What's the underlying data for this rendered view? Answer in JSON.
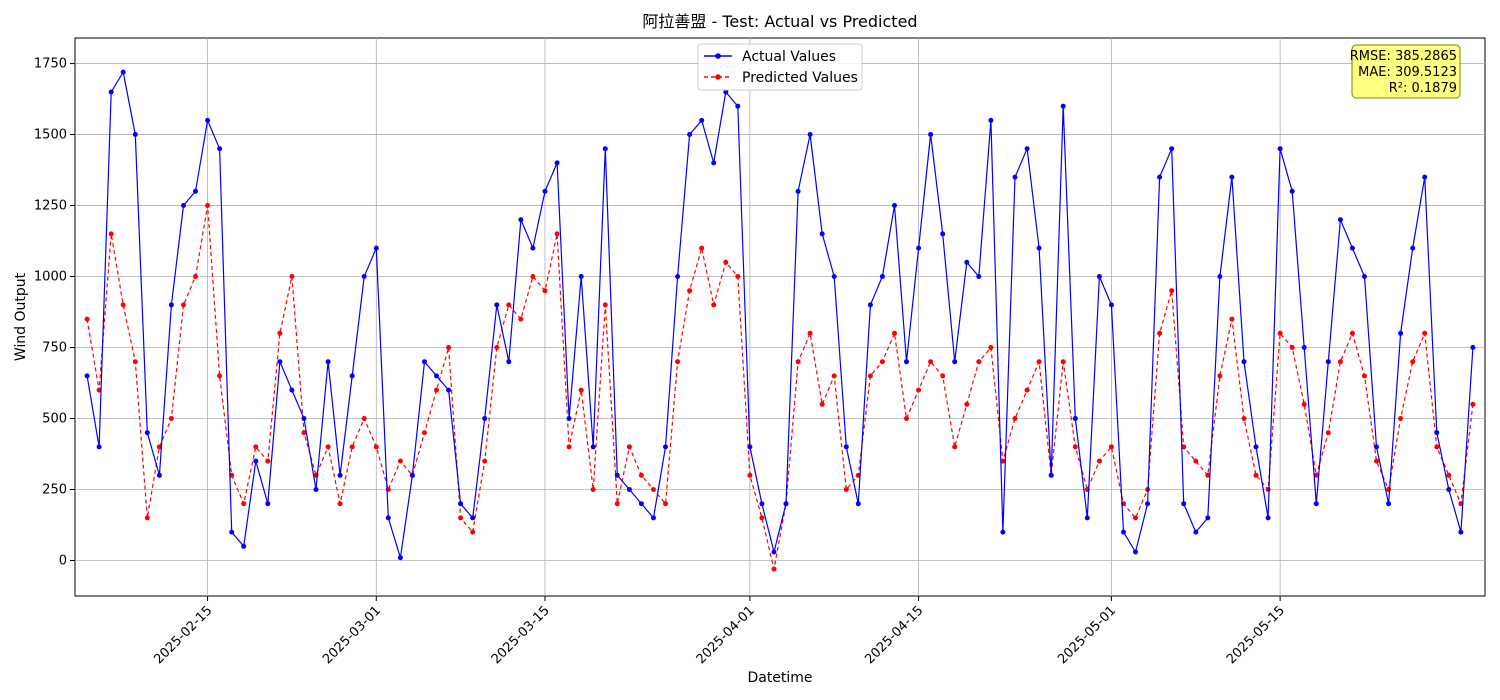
{
  "chart_data": {
    "type": "line",
    "title": "阿拉善盟 - Test: Actual vs Predicted",
    "xlabel": "Datetime",
    "ylabel": "Wind Output",
    "xlim": [
      "2025-02-04",
      "2025-06-01"
    ],
    "ylim": [
      -125,
      1840
    ],
    "yticks": [
      0,
      250,
      500,
      750,
      1000,
      1250,
      1500,
      1750
    ],
    "xticks": [
      "2025-02-15",
      "2025-03-01",
      "2025-03-15",
      "2025-04-01",
      "2025-04-15",
      "2025-05-01",
      "2025-05-15"
    ],
    "grid": true,
    "legend_position": "top-center",
    "series": [
      {
        "name": "Actual Values",
        "color": "#0000ff",
        "style": "solid",
        "marker": "circle",
        "points": [
          [
            "2025-02-05",
            650
          ],
          [
            "2025-02-06",
            400
          ],
          [
            "2025-02-07",
            1650
          ],
          [
            "2025-02-08",
            1720
          ],
          [
            "2025-02-09",
            1500
          ],
          [
            "2025-02-10",
            450
          ],
          [
            "2025-02-11",
            300
          ],
          [
            "2025-02-12",
            900
          ],
          [
            "2025-02-13",
            1250
          ],
          [
            "2025-02-14",
            1300
          ],
          [
            "2025-02-15",
            1550
          ],
          [
            "2025-02-16",
            1450
          ],
          [
            "2025-02-17",
            100
          ],
          [
            "2025-02-18",
            50
          ],
          [
            "2025-02-19",
            350
          ],
          [
            "2025-02-20",
            200
          ],
          [
            "2025-02-21",
            700
          ],
          [
            "2025-02-22",
            600
          ],
          [
            "2025-02-23",
            500
          ],
          [
            "2025-02-24",
            250
          ],
          [
            "2025-02-25",
            700
          ],
          [
            "2025-02-26",
            300
          ],
          [
            "2025-02-27",
            650
          ],
          [
            "2025-02-28",
            1000
          ],
          [
            "2025-03-01",
            1100
          ],
          [
            "2025-03-02",
            150
          ],
          [
            "2025-03-03",
            10
          ],
          [
            "2025-03-04",
            300
          ],
          [
            "2025-03-05",
            700
          ],
          [
            "2025-03-06",
            650
          ],
          [
            "2025-03-07",
            600
          ],
          [
            "2025-03-08",
            200
          ],
          [
            "2025-03-09",
            150
          ],
          [
            "2025-03-10",
            500
          ],
          [
            "2025-03-11",
            900
          ],
          [
            "2025-03-12",
            700
          ],
          [
            "2025-03-13",
            1200
          ],
          [
            "2025-03-14",
            1100
          ],
          [
            "2025-03-15",
            1300
          ],
          [
            "2025-03-16",
            1400
          ],
          [
            "2025-03-17",
            500
          ],
          [
            "2025-03-18",
            1000
          ],
          [
            "2025-03-19",
            400
          ],
          [
            "2025-03-20",
            1450
          ],
          [
            "2025-03-21",
            300
          ],
          [
            "2025-03-22",
            250
          ],
          [
            "2025-03-23",
            200
          ],
          [
            "2025-03-24",
            150
          ],
          [
            "2025-03-25",
            400
          ],
          [
            "2025-03-26",
            1000
          ],
          [
            "2025-03-27",
            1500
          ],
          [
            "2025-03-28",
            1550
          ],
          [
            "2025-03-29",
            1400
          ],
          [
            "2025-03-30",
            1650
          ],
          [
            "2025-03-31",
            1600
          ],
          [
            "2025-04-01",
            400
          ],
          [
            "2025-04-02",
            200
          ],
          [
            "2025-04-03",
            30
          ],
          [
            "2025-04-04",
            200
          ],
          [
            "2025-04-05",
            1300
          ],
          [
            "2025-04-06",
            1500
          ],
          [
            "2025-04-07",
            1150
          ],
          [
            "2025-04-08",
            1000
          ],
          [
            "2025-04-09",
            400
          ],
          [
            "2025-04-10",
            200
          ],
          [
            "2025-04-11",
            900
          ],
          [
            "2025-04-12",
            1000
          ],
          [
            "2025-04-13",
            1250
          ],
          [
            "2025-04-14",
            700
          ],
          [
            "2025-04-15",
            1100
          ],
          [
            "2025-04-16",
            1500
          ],
          [
            "2025-04-17",
            1150
          ],
          [
            "2025-04-18",
            700
          ],
          [
            "2025-04-19",
            1050
          ],
          [
            "2025-04-20",
            1000
          ],
          [
            "2025-04-21",
            1550
          ],
          [
            "2025-04-22",
            100
          ],
          [
            "2025-04-23",
            1350
          ],
          [
            "2025-04-24",
            1450
          ],
          [
            "2025-04-25",
            1100
          ],
          [
            "2025-04-26",
            300
          ],
          [
            "2025-04-27",
            1600
          ],
          [
            "2025-04-28",
            500
          ],
          [
            "2025-04-29",
            150
          ],
          [
            "2025-04-30",
            1000
          ],
          [
            "2025-05-01",
            900
          ],
          [
            "2025-05-02",
            100
          ],
          [
            "2025-05-03",
            30
          ],
          [
            "2025-05-04",
            200
          ],
          [
            "2025-05-05",
            1350
          ],
          [
            "2025-05-06",
            1450
          ],
          [
            "2025-05-07",
            200
          ],
          [
            "2025-05-08",
            100
          ],
          [
            "2025-05-09",
            150
          ],
          [
            "2025-05-10",
            1000
          ],
          [
            "2025-05-11",
            1350
          ],
          [
            "2025-05-12",
            700
          ],
          [
            "2025-05-13",
            400
          ],
          [
            "2025-05-14",
            150
          ],
          [
            "2025-05-15",
            1450
          ],
          [
            "2025-05-16",
            1300
          ],
          [
            "2025-05-17",
            750
          ],
          [
            "2025-05-18",
            200
          ],
          [
            "2025-05-19",
            700
          ],
          [
            "2025-05-20",
            1200
          ],
          [
            "2025-05-21",
            1100
          ],
          [
            "2025-05-22",
            1000
          ],
          [
            "2025-05-23",
            400
          ],
          [
            "2025-05-24",
            200
          ],
          [
            "2025-05-25",
            800
          ],
          [
            "2025-05-26",
            1100
          ],
          [
            "2025-05-27",
            1350
          ],
          [
            "2025-05-28",
            450
          ],
          [
            "2025-05-29",
            250
          ],
          [
            "2025-05-30",
            100
          ],
          [
            "2025-05-31",
            750
          ]
        ]
      },
      {
        "name": "Predicted Values",
        "color": "#ff0000",
        "style": "dashed",
        "marker": "circle",
        "points": [
          [
            "2025-02-05",
            850
          ],
          [
            "2025-02-06",
            600
          ],
          [
            "2025-02-07",
            1150
          ],
          [
            "2025-02-08",
            900
          ],
          [
            "2025-02-09",
            700
          ],
          [
            "2025-02-10",
            150
          ],
          [
            "2025-02-11",
            400
          ],
          [
            "2025-02-12",
            500
          ],
          [
            "2025-02-13",
            900
          ],
          [
            "2025-02-14",
            1000
          ],
          [
            "2025-02-15",
            1250
          ],
          [
            "2025-02-16",
            650
          ],
          [
            "2025-02-17",
            300
          ],
          [
            "2025-02-18",
            200
          ],
          [
            "2025-02-19",
            400
          ],
          [
            "2025-02-20",
            350
          ],
          [
            "2025-02-21",
            800
          ],
          [
            "2025-02-22",
            1000
          ],
          [
            "2025-02-23",
            450
          ],
          [
            "2025-02-24",
            300
          ],
          [
            "2025-02-25",
            400
          ],
          [
            "2025-02-26",
            200
          ],
          [
            "2025-02-27",
            400
          ],
          [
            "2025-02-28",
            500
          ],
          [
            "2025-03-01",
            400
          ],
          [
            "2025-03-02",
            250
          ],
          [
            "2025-03-03",
            350
          ],
          [
            "2025-03-04",
            300
          ],
          [
            "2025-03-05",
            450
          ],
          [
            "2025-03-06",
            600
          ],
          [
            "2025-03-07",
            750
          ],
          [
            "2025-03-08",
            150
          ],
          [
            "2025-03-09",
            100
          ],
          [
            "2025-03-10",
            350
          ],
          [
            "2025-03-11",
            750
          ],
          [
            "2025-03-12",
            900
          ],
          [
            "2025-03-13",
            850
          ],
          [
            "2025-03-14",
            1000
          ],
          [
            "2025-03-15",
            950
          ],
          [
            "2025-03-16",
            1150
          ],
          [
            "2025-03-17",
            400
          ],
          [
            "2025-03-18",
            600
          ],
          [
            "2025-03-19",
            250
          ],
          [
            "2025-03-20",
            900
          ],
          [
            "2025-03-21",
            200
          ],
          [
            "2025-03-22",
            400
          ],
          [
            "2025-03-23",
            300
          ],
          [
            "2025-03-24",
            250
          ],
          [
            "2025-03-25",
            200
          ],
          [
            "2025-03-26",
            700
          ],
          [
            "2025-03-27",
            950
          ],
          [
            "2025-03-28",
            1100
          ],
          [
            "2025-03-29",
            900
          ],
          [
            "2025-03-30",
            1050
          ],
          [
            "2025-03-31",
            1000
          ],
          [
            "2025-04-01",
            300
          ],
          [
            "2025-04-02",
            150
          ],
          [
            "2025-04-03",
            -30
          ],
          [
            "2025-04-04",
            200
          ],
          [
            "2025-04-05",
            700
          ],
          [
            "2025-04-06",
            800
          ],
          [
            "2025-04-07",
            550
          ],
          [
            "2025-04-08",
            650
          ],
          [
            "2025-04-09",
            250
          ],
          [
            "2025-04-10",
            300
          ],
          [
            "2025-04-11",
            650
          ],
          [
            "2025-04-12",
            700
          ],
          [
            "2025-04-13",
            800
          ],
          [
            "2025-04-14",
            500
          ],
          [
            "2025-04-15",
            600
          ],
          [
            "2025-04-16",
            700
          ],
          [
            "2025-04-17",
            650
          ],
          [
            "2025-04-18",
            400
          ],
          [
            "2025-04-19",
            550
          ],
          [
            "2025-04-20",
            700
          ],
          [
            "2025-04-21",
            750
          ],
          [
            "2025-04-22",
            350
          ],
          [
            "2025-04-23",
            500
          ],
          [
            "2025-04-24",
            600
          ],
          [
            "2025-04-25",
            700
          ],
          [
            "2025-04-26",
            300
          ],
          [
            "2025-04-27",
            700
          ],
          [
            "2025-04-28",
            400
          ],
          [
            "2025-04-29",
            250
          ],
          [
            "2025-04-30",
            350
          ],
          [
            "2025-05-01",
            400
          ],
          [
            "2025-05-02",
            200
          ],
          [
            "2025-05-03",
            150
          ],
          [
            "2025-05-04",
            250
          ],
          [
            "2025-05-05",
            800
          ],
          [
            "2025-05-06",
            950
          ],
          [
            "2025-05-07",
            400
          ],
          [
            "2025-05-08",
            350
          ],
          [
            "2025-05-09",
            300
          ],
          [
            "2025-05-10",
            650
          ],
          [
            "2025-05-11",
            850
          ],
          [
            "2025-05-12",
            500
          ],
          [
            "2025-05-13",
            300
          ],
          [
            "2025-05-14",
            250
          ],
          [
            "2025-05-15",
            800
          ],
          [
            "2025-05-16",
            750
          ],
          [
            "2025-05-17",
            550
          ],
          [
            "2025-05-18",
            300
          ],
          [
            "2025-05-19",
            450
          ],
          [
            "2025-05-20",
            700
          ],
          [
            "2025-05-21",
            800
          ],
          [
            "2025-05-22",
            650
          ],
          [
            "2025-05-23",
            350
          ],
          [
            "2025-05-24",
            250
          ],
          [
            "2025-05-25",
            500
          ],
          [
            "2025-05-26",
            700
          ],
          [
            "2025-05-27",
            800
          ],
          [
            "2025-05-28",
            400
          ],
          [
            "2025-05-29",
            300
          ],
          [
            "2025-05-30",
            200
          ],
          [
            "2025-05-31",
            550
          ]
        ]
      }
    ],
    "metrics": {
      "rmse_label": "RMSE: 385.2865",
      "mae_label": "MAE: 309.5123",
      "r2_label": "R²: 0.1879",
      "box_color": "#ffff80",
      "border_color": "#808000"
    }
  }
}
